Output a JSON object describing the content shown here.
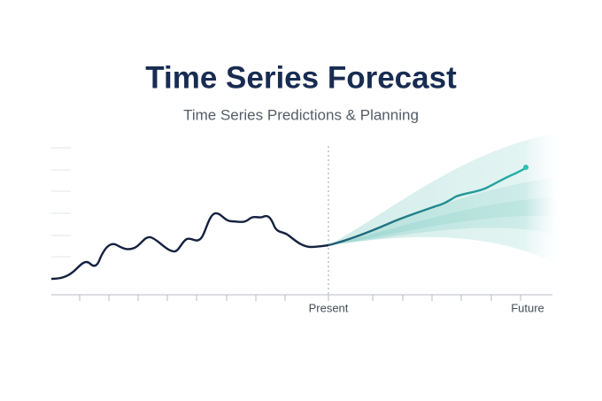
{
  "header": {
    "title": "Time Series Forecast",
    "subtitle": "Time Series Predictions & Planning"
  },
  "axis": {
    "present_label": "Present",
    "future_label": "Future"
  }
}
